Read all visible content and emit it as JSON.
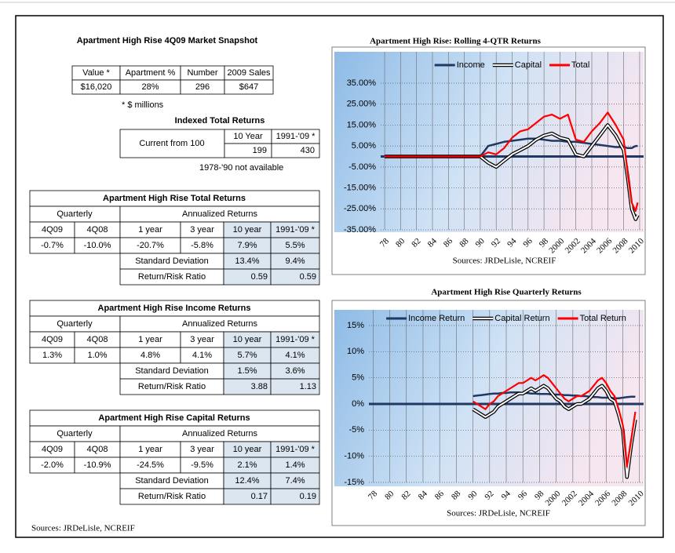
{
  "snapshot": {
    "title": "Apartment High Rise 4Q09 Market Snapshot",
    "headers": [
      "Value *",
      "Apartment %",
      "Number",
      "2009 Sales"
    ],
    "row": [
      "$16,020",
      "28%",
      "296",
      "$647"
    ],
    "note": "* $ millions"
  },
  "indexed": {
    "title": "Indexed Total Returns",
    "row_label": "Current from 100",
    "headers": [
      "10 Year",
      "1991-'09 *"
    ],
    "values": [
      "199",
      "430"
    ],
    "note": "1978-'90 not available"
  },
  "return_tables": [
    {
      "title": "Apartment High Rise Total Returns",
      "quarterly_label": "Quarterly",
      "annualized_label": "Annualized Returns",
      "headers": [
        "4Q09",
        "4Q08",
        "1 year",
        "3 year",
        "10 year",
        "1991-'09 *"
      ],
      "values": [
        "-0.7%",
        "-10.0%",
        "-20.7%",
        "-5.8%",
        "7.9%",
        "5.5%"
      ],
      "std_label": "Standard Deviation",
      "std": [
        "13.4%",
        "9.4%"
      ],
      "ratio_label": "Return/Risk Ratio",
      "ratio": [
        "0.59",
        "0.59"
      ]
    },
    {
      "title": "Apartment High Rise Income Returns",
      "quarterly_label": "Quarterly",
      "annualized_label": "Annualized Returns",
      "headers": [
        "4Q09",
        "4Q08",
        "1 year",
        "3 year",
        "10 year",
        "1991-'09 *"
      ],
      "values": [
        "1.3%",
        "1.0%",
        "4.8%",
        "4.1%",
        "5.7%",
        "4.1%"
      ],
      "std_label": "Standard Deviation",
      "std": [
        "1.5%",
        "3.6%"
      ],
      "ratio_label": "Return/Risk Ratio",
      "ratio": [
        "3.88",
        "1.13"
      ]
    },
    {
      "title": "Apartment High Rise Capital Returns",
      "quarterly_label": "Quarterly",
      "annualized_label": "Annualized Returns",
      "headers": [
        "4Q09",
        "4Q08",
        "1 year",
        "3 year",
        "10 year",
        "1991-'09 *"
      ],
      "values": [
        "-2.0%",
        "-10.9%",
        "-24.5%",
        "-9.5%",
        "2.1%",
        "1.4%"
      ],
      "std_label": "Standard Deviation",
      "std": [
        "12.4%",
        "7.4%"
      ],
      "ratio_label": "Return/Risk Ratio",
      "ratio": [
        "0.17",
        "0.19"
      ]
    }
  ],
  "sources": "Sources: JRDeLisle, NCREIF",
  "chart_data": [
    {
      "type": "line",
      "title": "Apartment High Rise:  Rolling 4-QTR Returns",
      "sources": "Sources: JRDeLisle, NCREIF",
      "x": [
        1978,
        1990,
        1991,
        1992,
        1993,
        1994,
        1995,
        1996,
        1997,
        1998,
        1999,
        2000,
        2001,
        2002,
        2003,
        2004,
        2005,
        2006,
        2007,
        2008,
        2008.5,
        2009,
        2009.5,
        2009.75
      ],
      "xlim": [
        1977.5,
        2010.5
      ],
      "xticks": [
        {
          "value": 1978,
          "label": "78"
        },
        {
          "value": 1980,
          "label": "80"
        },
        {
          "value": 1982,
          "label": "82"
        },
        {
          "value": 1984,
          "label": "84"
        },
        {
          "value": 1986,
          "label": "86"
        },
        {
          "value": 1988,
          "label": "88"
        },
        {
          "value": 1990,
          "label": "90"
        },
        {
          "value": 1992,
          "label": "92"
        },
        {
          "value": 1994,
          "label": "94"
        },
        {
          "value": 1996,
          "label": "96"
        },
        {
          "value": 1998,
          "label": "98"
        },
        2000,
        2002,
        2004,
        2006,
        2008,
        2010
      ],
      "ylim": [
        -35,
        35
      ],
      "yticks": [
        {
          "value": 35,
          "label": "35.00%"
        },
        {
          "value": 25,
          "label": "25.00%"
        },
        {
          "value": 15,
          "label": "15.00%"
        },
        {
          "value": 5,
          "label": "5.00%"
        },
        {
          "value": -5,
          "label": "-5.00%"
        },
        {
          "value": -15,
          "label": "-15.00%"
        },
        {
          "value": -25,
          "label": "-25.00%"
        },
        {
          "value": -35,
          "label": "-35.00%"
        }
      ],
      "grid": true,
      "legend": "top",
      "series": [
        {
          "name": "Income",
          "color": "#1f3864",
          "values": [
            0,
            0,
            5,
            6,
            7,
            7.5,
            8,
            8.5,
            8.5,
            8,
            7.5,
            7.5,
            7,
            7,
            6.5,
            6,
            5.5,
            5,
            4.5,
            4.5,
            4,
            4,
            5,
            5
          ]
        },
        {
          "name": "Capital",
          "color": "#ffffff",
          "line_style": "outlined",
          "values": [
            0,
            0,
            -3,
            -5,
            -2,
            1,
            3,
            5,
            8,
            10,
            11,
            9,
            8,
            1,
            0,
            5,
            10,
            15,
            10,
            3,
            -10,
            -25,
            -30,
            -28
          ]
        },
        {
          "name": "Total",
          "color": "#ff0000",
          "values": [
            0,
            0,
            2,
            1,
            4,
            9,
            12,
            13,
            16,
            19,
            20,
            18,
            20,
            8,
            7,
            12,
            16,
            21,
            15,
            8,
            -8,
            -22,
            -26,
            -22
          ]
        }
      ]
    },
    {
      "type": "line",
      "title": "Apartment High Rise Quarterly Returns",
      "sources": "Sources: JRDeLisle, NCREIF",
      "x": [
        1990,
        1990.5,
        1991,
        1991.5,
        1992,
        1992.5,
        1993,
        1993.5,
        1994,
        1994.5,
        1995,
        1995.5,
        1996,
        1996.5,
        1997,
        1997.5,
        1998,
        1998.5,
        1999,
        1999.5,
        2000,
        2000.5,
        2001,
        2001.5,
        2002,
        2002.5,
        2003,
        2003.5,
        2004,
        2004.5,
        2005,
        2005.5,
        2006,
        2006.5,
        2007,
        2007.5,
        2008,
        2008.5,
        2009,
        2009.5
      ],
      "xlim": [
        1977.5,
        2010.5
      ],
      "xticks": [
        {
          "value": 1978,
          "label": "78"
        },
        {
          "value": 1980,
          "label": "80"
        },
        {
          "value": 1982,
          "label": "82"
        },
        {
          "value": 1984,
          "label": "84"
        },
        {
          "value": 1986,
          "label": "86"
        },
        {
          "value": 1988,
          "label": "88"
        },
        {
          "value": 1990,
          "label": "90"
        },
        {
          "value": 1992,
          "label": "92"
        },
        {
          "value": 1994,
          "label": "94"
        },
        {
          "value": 1996,
          "label": "96"
        },
        {
          "value": 1998,
          "label": "98"
        },
        2000,
        2002,
        2004,
        2006,
        2008,
        2010
      ],
      "ylim": [
        -15,
        15
      ],
      "yticks": [
        {
          "value": 15,
          "label": "15%"
        },
        {
          "value": 10,
          "label": "10%"
        },
        {
          "value": 5,
          "label": "5%"
        },
        {
          "value": 0,
          "label": "0%"
        },
        {
          "value": -5,
          "label": "-5%"
        },
        {
          "value": -10,
          "label": "-10%"
        },
        {
          "value": -15,
          "label": "-15%"
        }
      ],
      "grid": true,
      "legend": "top",
      "series": [
        {
          "name": "Income Return",
          "color": "#1f3864",
          "values": [
            1.5,
            1.6,
            1.7,
            1.8,
            1.9,
            2,
            2,
            2.1,
            2.1,
            2.2,
            2.2,
            2.2,
            2.1,
            2.1,
            2,
            2,
            1.9,
            1.9,
            1.9,
            1.8,
            1.8,
            1.8,
            1.7,
            1.7,
            1.6,
            1.6,
            1.5,
            1.5,
            1.4,
            1.3,
            1.3,
            1.2,
            1.2,
            1.2,
            1.1,
            1.1,
            1.2,
            1.3,
            1.4,
            1.4
          ]
        },
        {
          "name": "Capital Return",
          "color": "#ffffff",
          "line_style": "outlined",
          "values": [
            -1,
            -1.5,
            -2,
            -2.5,
            -2,
            -1.5,
            -0.5,
            0,
            0.5,
            1,
            1.5,
            2,
            2,
            2.5,
            3,
            2.5,
            3,
            3.5,
            3,
            2,
            1,
            0.5,
            -0.5,
            -1,
            -0.5,
            0,
            0,
            0.5,
            1,
            2,
            3,
            3.5,
            2.5,
            1,
            0.5,
            -2,
            -5,
            -14,
            -8,
            -3
          ]
        },
        {
          "name": "Total Return",
          "color": "#ff0000",
          "values": [
            0.5,
            0,
            -0.5,
            -1,
            0,
            0.5,
            1.5,
            2,
            2.5,
            3,
            3.5,
            4,
            4,
            4.5,
            5,
            4.5,
            5,
            5.5,
            5,
            4,
            3,
            2,
            1,
            0.5,
            1,
            1.5,
            1.5,
            2,
            2.5,
            3.5,
            4.5,
            5,
            4,
            2.5,
            1.5,
            -1,
            -4,
            -12,
            -7,
            -1.5
          ]
        }
      ]
    }
  ]
}
